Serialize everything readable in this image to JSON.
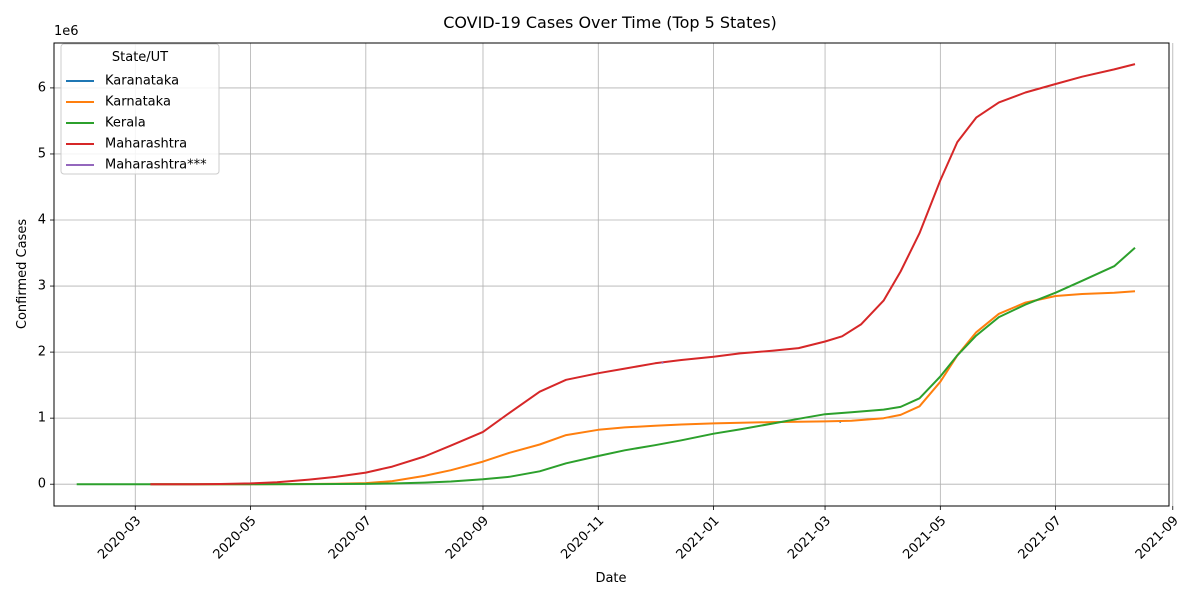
{
  "chart_data": {
    "type": "line",
    "title": "COVID-19 Cases Over Time (Top 5 States)",
    "xlabel": "Date",
    "ylabel": "Confirmed Cases",
    "y_multiplier_label": "1e6",
    "xlim": [
      "2020-01-18",
      "2021-08-30"
    ],
    "ylim": [
      -330000,
      6680000
    ],
    "grid": true,
    "x_ticks": [
      "2020-03",
      "2020-05",
      "2020-07",
      "2020-09",
      "2020-11",
      "2021-01",
      "2021-03",
      "2021-05",
      "2021-07",
      "2021-09"
    ],
    "y_ticks": [
      0,
      1,
      2,
      3,
      4,
      5,
      6
    ],
    "legend": {
      "title": "State/UT",
      "position": "upper left"
    },
    "series": [
      {
        "name": "Karanataka",
        "color": "#1f77b4",
        "points": [
          [
            "2021-03-09",
            944000
          ]
        ]
      },
      {
        "name": "Karnataka",
        "color": "#ff7f0e",
        "points": [
          [
            "2020-03-09",
            0
          ],
          [
            "2020-05-01",
            600
          ],
          [
            "2020-06-01",
            3400
          ],
          [
            "2020-06-15",
            7000
          ],
          [
            "2020-07-01",
            16000
          ],
          [
            "2020-07-15",
            47000
          ],
          [
            "2020-08-01",
            125000
          ],
          [
            "2020-08-15",
            212000
          ],
          [
            "2020-09-01",
            342000
          ],
          [
            "2020-09-15",
            475000
          ],
          [
            "2020-10-01",
            601000
          ],
          [
            "2020-10-15",
            743000
          ],
          [
            "2020-11-01",
            823000
          ],
          [
            "2020-11-15",
            860000
          ],
          [
            "2020-12-01",
            884000
          ],
          [
            "2020-12-15",
            904000
          ],
          [
            "2021-01-01",
            920000
          ],
          [
            "2021-02-01",
            940000
          ],
          [
            "2021-03-01",
            951000
          ],
          [
            "2021-03-15",
            962000
          ],
          [
            "2021-04-01",
            1000000
          ],
          [
            "2021-04-10",
            1050000
          ],
          [
            "2021-04-20",
            1180000
          ],
          [
            "2021-05-01",
            1550000
          ],
          [
            "2021-05-10",
            1950000
          ],
          [
            "2021-05-20",
            2300000
          ],
          [
            "2021-06-01",
            2580000
          ],
          [
            "2021-06-15",
            2750000
          ],
          [
            "2021-07-01",
            2850000
          ],
          [
            "2021-07-15",
            2880000
          ],
          [
            "2021-08-01",
            2900000
          ],
          [
            "2021-08-12",
            2920000
          ]
        ]
      },
      {
        "name": "Kerala",
        "color": "#2ca02c",
        "points": [
          [
            "2020-01-30",
            1
          ],
          [
            "2020-03-01",
            3
          ],
          [
            "2020-05-01",
            500
          ],
          [
            "2020-06-01",
            1300
          ],
          [
            "2020-07-01",
            4700
          ],
          [
            "2020-07-15",
            10000
          ],
          [
            "2020-08-01",
            25000
          ],
          [
            "2020-08-15",
            41000
          ],
          [
            "2020-09-01",
            75000
          ],
          [
            "2020-09-15",
            112000
          ],
          [
            "2020-10-01",
            195000
          ],
          [
            "2020-10-15",
            317000
          ],
          [
            "2020-11-01",
            427000
          ],
          [
            "2020-11-15",
            513000
          ],
          [
            "2020-12-01",
            590000
          ],
          [
            "2020-12-15",
            665000
          ],
          [
            "2021-01-01",
            765000
          ],
          [
            "2021-01-15",
            830000
          ],
          [
            "2021-02-01",
            917000
          ],
          [
            "2021-02-15",
            990000
          ],
          [
            "2021-03-01",
            1060000
          ],
          [
            "2021-03-15",
            1090000
          ],
          [
            "2021-04-01",
            1130000
          ],
          [
            "2021-04-10",
            1170000
          ],
          [
            "2021-04-20",
            1300000
          ],
          [
            "2021-05-01",
            1630000
          ],
          [
            "2021-05-10",
            1950000
          ],
          [
            "2021-05-20",
            2250000
          ],
          [
            "2021-06-01",
            2530000
          ],
          [
            "2021-06-15",
            2720000
          ],
          [
            "2021-07-01",
            2900000
          ],
          [
            "2021-07-15",
            3080000
          ],
          [
            "2021-08-01",
            3300000
          ],
          [
            "2021-08-12",
            3580000
          ]
        ]
      },
      {
        "name": "Maharashtra",
        "color": "#d62728",
        "points": [
          [
            "2020-03-09",
            2
          ],
          [
            "2020-04-01",
            300
          ],
          [
            "2020-04-15",
            2700
          ],
          [
            "2020-05-01",
            11500
          ],
          [
            "2020-05-15",
            30000
          ],
          [
            "2020-06-01",
            70000
          ],
          [
            "2020-06-15",
            110000
          ],
          [
            "2020-07-01",
            175000
          ],
          [
            "2020-07-15",
            267000
          ],
          [
            "2020-08-01",
            420000
          ],
          [
            "2020-08-15",
            585000
          ],
          [
            "2020-09-01",
            792000
          ],
          [
            "2020-09-15",
            1080000
          ],
          [
            "2020-10-01",
            1400000
          ],
          [
            "2020-10-15",
            1580000
          ],
          [
            "2020-11-01",
            1680000
          ],
          [
            "2020-11-15",
            1750000
          ],
          [
            "2020-12-01",
            1830000
          ],
          [
            "2020-12-15",
            1880000
          ],
          [
            "2021-01-01",
            1930000
          ],
          [
            "2021-01-15",
            1980000
          ],
          [
            "2021-02-01",
            2020000
          ],
          [
            "2021-02-15",
            2060000
          ],
          [
            "2021-03-01",
            2160000
          ],
          [
            "2021-03-10",
            2240000
          ],
          [
            "2021-03-20",
            2420000
          ],
          [
            "2021-04-01",
            2780000
          ],
          [
            "2021-04-10",
            3220000
          ],
          [
            "2021-04-20",
            3800000
          ],
          [
            "2021-05-01",
            4600000
          ],
          [
            "2021-05-10",
            5180000
          ],
          [
            "2021-05-20",
            5550000
          ],
          [
            "2021-06-01",
            5780000
          ],
          [
            "2021-06-15",
            5930000
          ],
          [
            "2021-07-01",
            6060000
          ],
          [
            "2021-07-15",
            6170000
          ],
          [
            "2021-08-01",
            6280000
          ],
          [
            "2021-08-12",
            6360000
          ]
        ]
      },
      {
        "name": "Maharashtra***",
        "color": "#9467bd",
        "points": [
          [
            "2020-12-05",
            1840000
          ]
        ]
      }
    ]
  }
}
